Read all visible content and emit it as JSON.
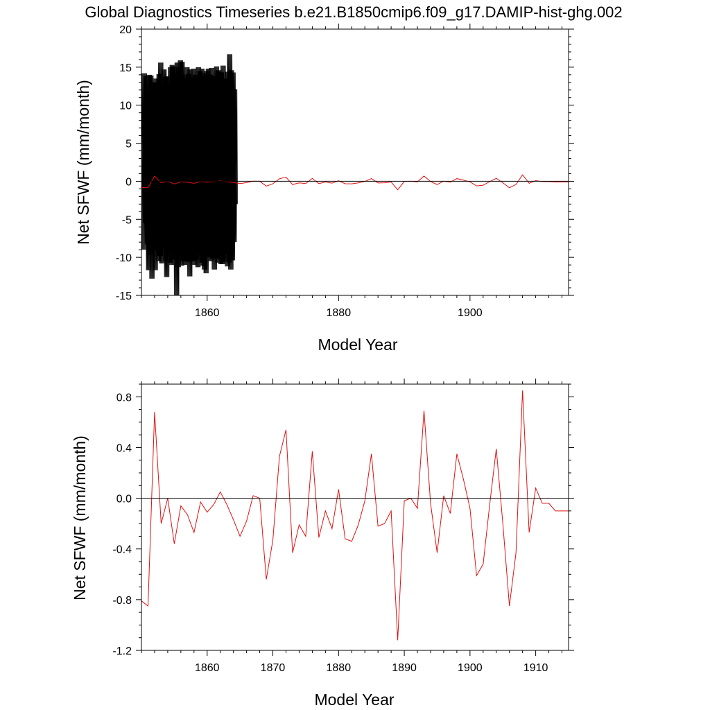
{
  "page": {
    "title": "Global Diagnostics Timeseries b.e21.B1850cmip6.f09_g17.DAMIP-hist-ghg.002"
  },
  "chart_data": [
    {
      "type": "line",
      "xlabel": "Model Year",
      "ylabel": "Net SFWF (mm/month)",
      "xlim": [
        1850,
        1915
      ],
      "ylim": [
        -15,
        20
      ],
      "x_ticks": [
        1860,
        1880,
        1900
      ],
      "y_ticks": [
        20,
        15,
        10,
        5,
        0,
        -5,
        -10,
        -15
      ],
      "grid": false,
      "reference_line": 0,
      "colors": {
        "monthly": "#000000",
        "annual": "#e01010",
        "reference": "#000000"
      },
      "series": [
        {
          "key": "monthly",
          "x_start": 1850,
          "step": 0.08333,
          "values": [
            -9.0,
            14.2,
            2.0,
            -5.5,
            13.8,
            -0.5,
            -8.3,
            -6.8,
            4.4,
            -11.7,
            14.0,
            -1.2,
            -9.6,
            13.9,
            2.1,
            -12.8,
            12.5,
            1.5,
            -9.0,
            13.0,
            -0.8,
            -11.7,
            13.5,
            3.3,
            -8.8,
            13.0,
            0.8,
            -10.5,
            14.1,
            1.0,
            -9.8,
            15.6,
            2.4,
            -10.8,
            12.1,
            -0.3,
            -8.6,
            14.7,
            1.8,
            -10.5,
            13.7,
            1.2,
            -12.6,
            13.8,
            0.5,
            -9.5,
            12.8,
            1.2,
            -10.7,
            15.0,
            0.3,
            -11.0,
            15.3,
            0.9,
            -10.3,
            15.1,
            3.4,
            -9.9,
            14.2,
            0.6,
            -15.0,
            15.6,
            1.3,
            -11.3,
            15.0,
            0.4,
            -9.8,
            15.9,
            0.5,
            -11.1,
            15.7,
            1.2,
            -10.5,
            14.0,
            1.3,
            -11.0,
            13.5,
            0.8,
            -10.5,
            15.0,
            1.5,
            -10.6,
            14.1,
            1.4,
            -12.5,
            14.7,
            0.6,
            -9.7,
            13.6,
            1.8,
            -10.5,
            14.8,
            1.8,
            -11.0,
            14.0,
            2.4,
            -10.3,
            13.6,
            1.0,
            -11.3,
            15.0,
            0.5,
            -9.6,
            14.5,
            1.0,
            -10.7,
            14.8,
            1.7,
            -11.1,
            13.8,
            1.2,
            -11.6,
            14.2,
            1.7,
            -12.1,
            14.5,
            1.3,
            -10.0,
            14.8,
            1.4,
            -10.0,
            14.0,
            1.9,
            -10.5,
            14.9,
            0.6,
            -10.2,
            13.8,
            0.9,
            -11.6,
            13.2,
            1.0,
            -8.9,
            15.1,
            1.3,
            -10.7,
            14.6,
            2.0,
            -10.2,
            14.4,
            1.1,
            -10.9,
            14.3,
            0.8,
            -10.9,
            15.2,
            0.6,
            -10.6,
            13.4,
            1.9,
            -9.6,
            13.5,
            1.7,
            -11.2,
            14.4,
            0.9,
            -10.7,
            16.7,
            0.8,
            -11.6,
            14.6,
            0.5,
            -10.4,
            14.3,
            0.7,
            -8.0,
            12.1,
            -3.0
          ],
          "trace_offsets": [
            0.0,
            0.1,
            0.2,
            0.3,
            0.4,
            0.5,
            0.6,
            0.7
          ]
        },
        {
          "key": "annual",
          "x": [
            1850,
            1851,
            1852,
            1853,
            1854,
            1855,
            1856,
            1857,
            1858,
            1859,
            1860,
            1861,
            1862,
            1863,
            1864,
            1865,
            1866,
            1867,
            1868,
            1869,
            1870,
            1871,
            1872,
            1873,
            1874,
            1875,
            1876,
            1877,
            1878,
            1879,
            1880,
            1881,
            1882,
            1883,
            1884,
            1885,
            1886,
            1887,
            1888,
            1889,
            1890,
            1891,
            1892,
            1893,
            1894,
            1895,
            1896,
            1897,
            1898,
            1899,
            1900,
            1901,
            1902,
            1903,
            1904,
            1905,
            1906,
            1907,
            1908,
            1909,
            1910,
            1911,
            1912,
            1913,
            1914,
            1915
          ],
          "values": [
            -0.81,
            -0.85,
            0.68,
            -0.2,
            0.0,
            -0.36,
            -0.06,
            -0.13,
            -0.27,
            -0.03,
            -0.11,
            -0.05,
            0.05,
            -0.05,
            -0.17,
            -0.3,
            -0.18,
            0.02,
            0.0,
            -0.64,
            -0.33,
            0.33,
            0.54,
            -0.43,
            -0.21,
            -0.3,
            0.37,
            -0.31,
            -0.1,
            -0.24,
            0.07,
            -0.32,
            -0.34,
            -0.21,
            -0.02,
            0.35,
            -0.22,
            -0.2,
            -0.1,
            -1.12,
            -0.02,
            0.0,
            -0.08,
            0.69,
            -0.04,
            -0.43,
            0.02,
            -0.12,
            0.35,
            0.15,
            -0.08,
            -0.61,
            -0.52,
            -0.05,
            0.39,
            -0.2,
            -0.85,
            -0.43,
            0.85,
            -0.27,
            0.08,
            -0.04,
            -0.04,
            -0.1,
            -0.1,
            -0.1
          ]
        }
      ]
    },
    {
      "type": "line",
      "xlabel": "Model Year",
      "ylabel": "Net SFWF (mm/month)",
      "xlim": [
        1850,
        1915
      ],
      "ylim": [
        -1.2,
        0.9
      ],
      "x_ticks": [
        1860,
        1870,
        1880,
        1890,
        1900,
        1910
      ],
      "y_ticks": [
        0.8,
        0.4,
        0.0,
        -0.4,
        -0.8,
        -1.2
      ],
      "y_tick_labels": [
        "0.8",
        "0.4",
        "0.0",
        "-0.4",
        "-0.8",
        "-1.2"
      ],
      "grid": false,
      "reference_line": 0,
      "colors": {
        "annual": "#e01010",
        "reference": "#000000"
      },
      "series": [
        {
          "key": "annual",
          "x": [
            1850,
            1851,
            1852,
            1853,
            1854,
            1855,
            1856,
            1857,
            1858,
            1859,
            1860,
            1861,
            1862,
            1863,
            1864,
            1865,
            1866,
            1867,
            1868,
            1869,
            1870,
            1871,
            1872,
            1873,
            1874,
            1875,
            1876,
            1877,
            1878,
            1879,
            1880,
            1881,
            1882,
            1883,
            1884,
            1885,
            1886,
            1887,
            1888,
            1889,
            1890,
            1891,
            1892,
            1893,
            1894,
            1895,
            1896,
            1897,
            1898,
            1899,
            1900,
            1901,
            1902,
            1903,
            1904,
            1905,
            1906,
            1907,
            1908,
            1909,
            1910,
            1911,
            1912,
            1913,
            1914,
            1915
          ],
          "values": [
            -0.81,
            -0.85,
            0.68,
            -0.2,
            0.0,
            -0.36,
            -0.06,
            -0.13,
            -0.27,
            -0.03,
            -0.11,
            -0.05,
            0.05,
            -0.05,
            -0.17,
            -0.3,
            -0.18,
            0.02,
            0.0,
            -0.64,
            -0.33,
            0.33,
            0.54,
            -0.43,
            -0.21,
            -0.3,
            0.37,
            -0.31,
            -0.1,
            -0.24,
            0.07,
            -0.32,
            -0.34,
            -0.21,
            -0.02,
            0.35,
            -0.22,
            -0.2,
            -0.1,
            -1.12,
            -0.02,
            0.0,
            -0.08,
            0.69,
            -0.04,
            -0.43,
            0.02,
            -0.12,
            0.35,
            0.15,
            -0.08,
            -0.61,
            -0.52,
            -0.05,
            0.39,
            -0.2,
            -0.85,
            -0.43,
            0.85,
            -0.27,
            0.08,
            -0.04,
            -0.04,
            -0.1,
            -0.1,
            -0.1
          ]
        }
      ]
    }
  ]
}
